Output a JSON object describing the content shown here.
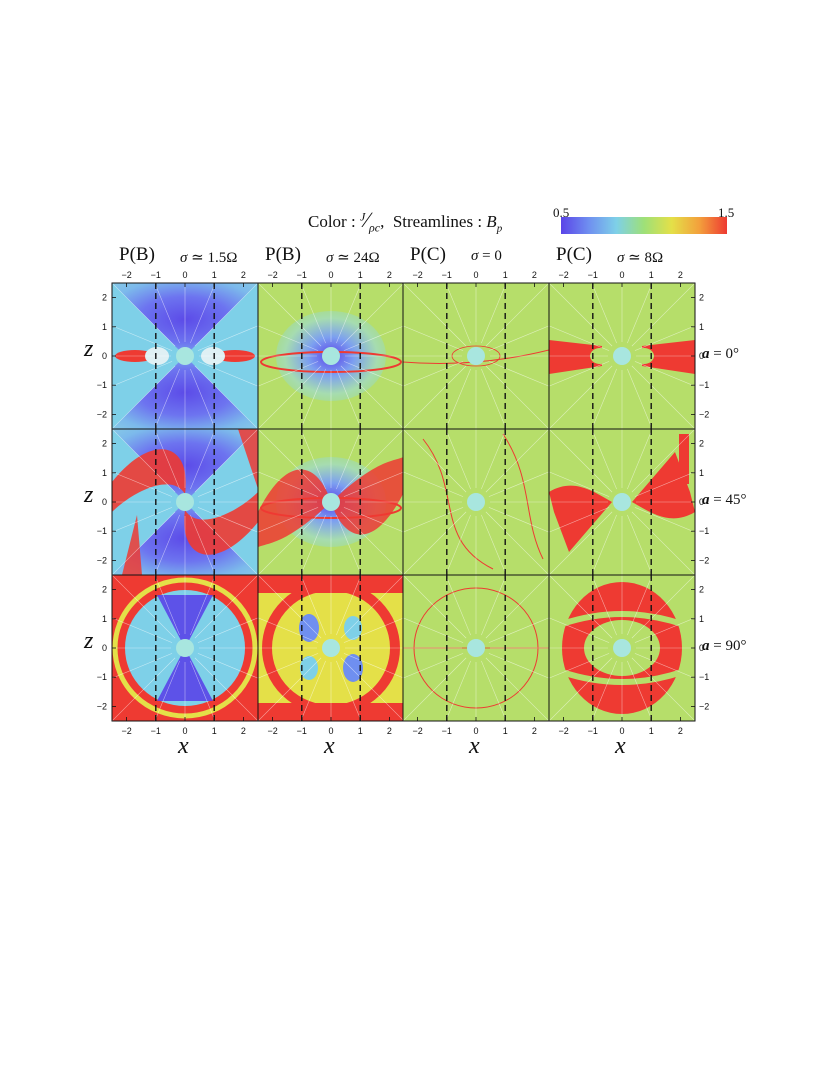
{
  "header": {
    "color_prefix": "Color : ",
    "color_num": "J",
    "color_den": "ρc",
    "color_suffix": ",",
    "streamlines_prefix": "Streamlines : ",
    "streamlines_var": "B",
    "streamlines_sub": "p",
    "colorbar_min": "0.5",
    "colorbar_max": "1.5"
  },
  "colorbar_colors": [
    "#5a44e8",
    "#6f8ff0",
    "#7ed0e8",
    "#9ee078",
    "#e4e048",
    "#f3a03c",
    "#ee3a32"
  ],
  "columns": [
    {
      "model": "P(B)",
      "sigma_sym": "σ",
      "sigma_rel": " ≃ ",
      "sigma_val": "1.5Ω",
      "style": "pb1"
    },
    {
      "model": "P(B)",
      "sigma_sym": "σ",
      "sigma_rel": " ≃ ",
      "sigma_val": "24Ω",
      "style": "pb2"
    },
    {
      "model": "P(C)",
      "sigma_sym": "σ",
      "sigma_rel": " = ",
      "sigma_val": "0",
      "style": "pc1"
    },
    {
      "model": "P(C)",
      "sigma_sym": "σ",
      "sigma_rel": " ≃ ",
      "sigma_val": "8Ω",
      "style": "pc2"
    }
  ],
  "rows": [
    {
      "a_sym": "a",
      "a_rel": " = ",
      "a_val": "0°",
      "id": 0
    },
    {
      "a_sym": "a",
      "a_rel": " = ",
      "a_val": "45°",
      "id": 1
    },
    {
      "a_sym": "a",
      "a_rel": " = ",
      "a_val": "90°",
      "id": 2
    }
  ],
  "x_ticks": [
    "−2",
    "−1",
    "0",
    "1",
    "2"
  ],
  "z_ticks": [
    "2",
    "1",
    "0",
    "−1",
    "−2"
  ],
  "x_label": "x",
  "z_label": "z",
  "chart_data": {
    "type": "heatmap",
    "title": "Color : J/ρc, Streamlines : B_p",
    "colorbar_range": [
      0.5,
      1.5
    ],
    "xlabel": "x",
    "ylabel": "z",
    "xlim": [
      -2.5,
      2.5
    ],
    "ylim": [
      -2.5,
      2.5
    ],
    "x_ticks": [
      -2,
      -1,
      0,
      1,
      2
    ],
    "y_ticks": [
      -2,
      -1,
      0,
      1,
      2
    ],
    "light_cylinder_x": [
      -1,
      1
    ],
    "panels_columns": [
      "P(B) σ ≃ 1.5Ω",
      "P(B) σ ≃ 24Ω",
      "P(C) σ = 0",
      "P(C) σ ≃ 8Ω"
    ],
    "panels_rows": [
      "a = 0°",
      "a = 45°",
      "a = 90°"
    ]
  }
}
